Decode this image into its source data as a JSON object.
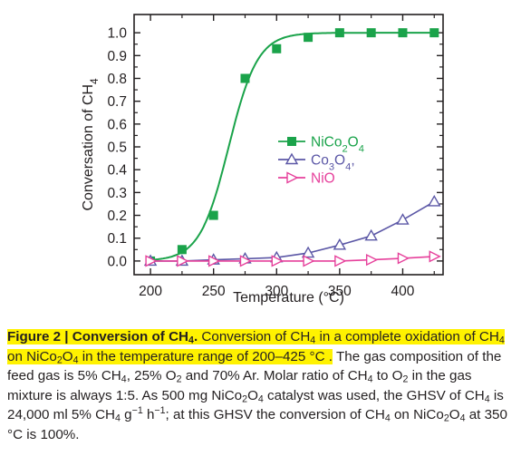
{
  "chart_data": {
    "type": "line",
    "xlabel": "Temperature (°C)",
    "ylabel": "Conversation of CH4",
    "xlim": [
      187,
      432
    ],
    "ylim": [
      -0.06,
      1.08
    ],
    "xticks": [
      200,
      250,
      300,
      350,
      400
    ],
    "yticks": [
      0.0,
      0.1,
      0.2,
      0.3,
      0.4,
      0.5,
      0.6,
      0.7,
      0.8,
      0.9,
      1.0
    ],
    "x": [
      200,
      225,
      250,
      275,
      300,
      325,
      350,
      375,
      400,
      425
    ],
    "series": [
      {
        "name": "NiCo2O4",
        "color": "#1aa34a",
        "marker": "square-filled",
        "values": [
          0.0,
          0.05,
          0.2,
          0.8,
          0.93,
          0.98,
          1.0,
          1.0,
          1.0,
          1.0
        ],
        "fit_curve": "sigmoid"
      },
      {
        "name": "Co3O4,",
        "color": "#5b57a6",
        "marker": "triangle-up-open",
        "values": [
          0.0,
          0.0,
          0.005,
          0.01,
          0.015,
          0.035,
          0.07,
          0.11,
          0.18,
          0.26
        ]
      },
      {
        "name": "NiO",
        "color": "#e6409b",
        "marker": "triangle-right-open",
        "values": [
          0.0,
          0.0,
          0.0,
          0.0,
          0.0,
          0.0,
          0.0,
          0.005,
          0.012,
          0.02
        ]
      }
    ],
    "legend": "center-right"
  },
  "caption": {
    "label": "Figure 2 | Conversion of CH",
    "label_sub": "4",
    "label_end": ".",
    "highlight_text": "Conversion of CH4 in a complete oxidation of CH4 on NiCo2O4 in the temperature range of 200–425 °C .",
    "body_text": "The gas composition of the feed gas is 5% CH4, 25% O2 and 70% Ar. Molar ratio of CH4 to O2 in the gas mixture is always 1:5. As 500 mg NiCo2O4 catalyst was used, the GHSV of CH4 is 24,000 ml 5% CH4 g−1 h−1; at this GHSV the conversion of CH4 on NiCo2O4 at 350 °C is 100%."
  }
}
